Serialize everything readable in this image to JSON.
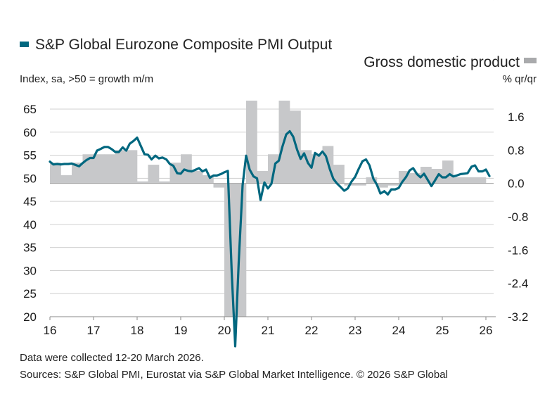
{
  "chart_data": {
    "type": "bar+line",
    "title": "",
    "legend": {
      "line_series_label": "S&P Global Eurozone Composite PMI Output",
      "line_series_unit": "Index, sa, >50 = growth m/m",
      "bar_series_label": "Gross domestic product",
      "bar_series_unit": "% qr/qr",
      "placement": "top"
    },
    "colors": {
      "pmi_line": "#00677f",
      "gdp_bars": "#c7c8ca",
      "gridline": "#d0d0d0",
      "zero_line": "#a6a6a6"
    },
    "x_axis": {
      "tick_labels": [
        "16",
        "17",
        "18",
        "19",
        "20",
        "21",
        "22",
        "23",
        "24",
        "25",
        "26"
      ],
      "range_years": [
        2016,
        2026.3
      ]
    },
    "y_left": {
      "label": "Index, sa, >50 = growth m/m",
      "ticks": [
        20,
        25,
        30,
        35,
        40,
        45,
        50,
        55,
        60,
        65
      ],
      "range": [
        20,
        65
      ],
      "grid": true
    },
    "y_right": {
      "label": "% qr/qr",
      "ticks": [
        "-3.2",
        "-2.4",
        "-1.6",
        "-0.8",
        "0.0",
        "0.8",
        "1.6"
      ],
      "range": [
        -3.2,
        2.0
      ]
    },
    "gdp_series": {
      "name": "Gross domestic product",
      "quarters": [
        "2016Q1",
        "2016Q2",
        "2016Q3",
        "2016Q4",
        "2017Q1",
        "2017Q2",
        "2017Q3",
        "2017Q4",
        "2018Q1",
        "2018Q2",
        "2018Q3",
        "2018Q4",
        "2019Q1",
        "2019Q2",
        "2019Q3",
        "2019Q4",
        "2020Q1",
        "2020Q2",
        "2020Q3",
        "2020Q4",
        "2021Q1",
        "2021Q2",
        "2021Q3",
        "2021Q4",
        "2022Q1",
        "2022Q2",
        "2022Q3",
        "2022Q4",
        "2023Q1",
        "2023Q2",
        "2023Q3",
        "2023Q4",
        "2024Q1",
        "2024Q2",
        "2024Q3",
        "2024Q4",
        "2025Q1",
        "2025Q2",
        "2025Q3",
        "2025Q4"
      ],
      "values": [
        0.5,
        0.2,
        0.5,
        0.7,
        0.7,
        0.7,
        0.8,
        0.8,
        0.05,
        0.45,
        0.05,
        0.5,
        0.7,
        0.3,
        0.2,
        -0.1,
        -3.5,
        -11.0,
        12.0,
        0.3,
        0.7,
        2.2,
        1.75,
        0.8,
        0.7,
        0.9,
        0.45,
        -0.05,
        -0.05,
        0.15,
        -0.1,
        -0.05,
        0.3,
        0.25,
        0.4,
        0.35,
        0.55,
        0.15,
        0.15,
        0.15
      ]
    },
    "pmi_series": {
      "name": "S&P Global Eurozone Composite PMI Output",
      "x": [
        2016.0,
        2016.08,
        2016.17,
        2016.25,
        2016.33,
        2016.42,
        2016.5,
        2016.58,
        2016.67,
        2016.75,
        2016.83,
        2016.92,
        2017.0,
        2017.08,
        2017.17,
        2017.25,
        2017.33,
        2017.42,
        2017.5,
        2017.58,
        2017.67,
        2017.75,
        2017.83,
        2017.92,
        2018.0,
        2018.08,
        2018.17,
        2018.25,
        2018.33,
        2018.42,
        2018.5,
        2018.58,
        2018.67,
        2018.75,
        2018.83,
        2018.92,
        2019.0,
        2019.08,
        2019.17,
        2019.25,
        2019.33,
        2019.42,
        2019.5,
        2019.58,
        2019.67,
        2019.75,
        2019.83,
        2019.92,
        2020.0,
        2020.08,
        2020.17,
        2020.25,
        2020.33,
        2020.42,
        2020.5,
        2020.58,
        2020.67,
        2020.75,
        2020.83,
        2020.92,
        2021.0,
        2021.08,
        2021.17,
        2021.25,
        2021.33,
        2021.42,
        2021.5,
        2021.58,
        2021.67,
        2021.75,
        2021.83,
        2021.92,
        2022.0,
        2022.08,
        2022.17,
        2022.25,
        2022.33,
        2022.42,
        2022.5,
        2022.58,
        2022.67,
        2022.75,
        2022.83,
        2022.92,
        2023.0,
        2023.08,
        2023.17,
        2023.25,
        2023.33,
        2023.42,
        2023.5,
        2023.58,
        2023.67,
        2023.75,
        2023.83,
        2023.92,
        2024.0,
        2024.08,
        2024.17,
        2024.25,
        2024.33,
        2024.42,
        2024.5,
        2024.58,
        2024.67,
        2024.75,
        2024.83,
        2024.92,
        2025.0,
        2025.08,
        2025.17,
        2025.25,
        2025.33,
        2025.42,
        2025.5,
        2025.58,
        2025.67,
        2025.75,
        2025.83,
        2025.92,
        2026.0,
        2026.08,
        2026.17
      ],
      "values": [
        53.6,
        53.0,
        53.1,
        53.0,
        53.1,
        53.1,
        53.2,
        52.9,
        52.6,
        53.3,
        53.9,
        54.4,
        54.4,
        56.0,
        56.4,
        56.8,
        56.8,
        56.3,
        55.7,
        55.7,
        56.7,
        56.0,
        57.5,
        58.1,
        58.8,
        57.1,
        55.2,
        55.1,
        54.1,
        54.9,
        54.3,
        54.5,
        54.1,
        53.1,
        52.7,
        51.1,
        51.0,
        51.9,
        51.6,
        51.5,
        51.8,
        52.2,
        51.5,
        51.9,
        50.1,
        50.6,
        50.6,
        50.9,
        51.3,
        51.6,
        29.7,
        13.6,
        31.9,
        48.5,
        54.9,
        51.9,
        50.4,
        50.0,
        45.3,
        49.1,
        47.8,
        48.8,
        53.2,
        53.8,
        56.8,
        59.5,
        60.2,
        59.0,
        56.2,
        54.2,
        55.4,
        53.3,
        52.3,
        55.5,
        54.9,
        55.8,
        54.8,
        52.0,
        49.9,
        48.9,
        48.1,
        47.3,
        47.8,
        49.3,
        50.3,
        52.0,
        53.7,
        54.1,
        52.8,
        49.9,
        48.6,
        46.7,
        47.2,
        46.5,
        47.6,
        47.6,
        47.9,
        49.2,
        50.3,
        51.7,
        52.2,
        50.9,
        50.2,
        51.0,
        49.6,
        48.3,
        49.5,
        50.9,
        50.2,
        50.2,
        50.9,
        50.4,
        50.6,
        50.9,
        51.0,
        51.1,
        52.5,
        52.8,
        51.5,
        51.5,
        51.9,
        50.5
      ]
    }
  },
  "footer": {
    "note": "Data were collected 12-20 March 2026.",
    "sources": "Sources: S&P Global PMI, Eurostat via S&P Global Market Intelligence. © 2026 S&P Global"
  }
}
